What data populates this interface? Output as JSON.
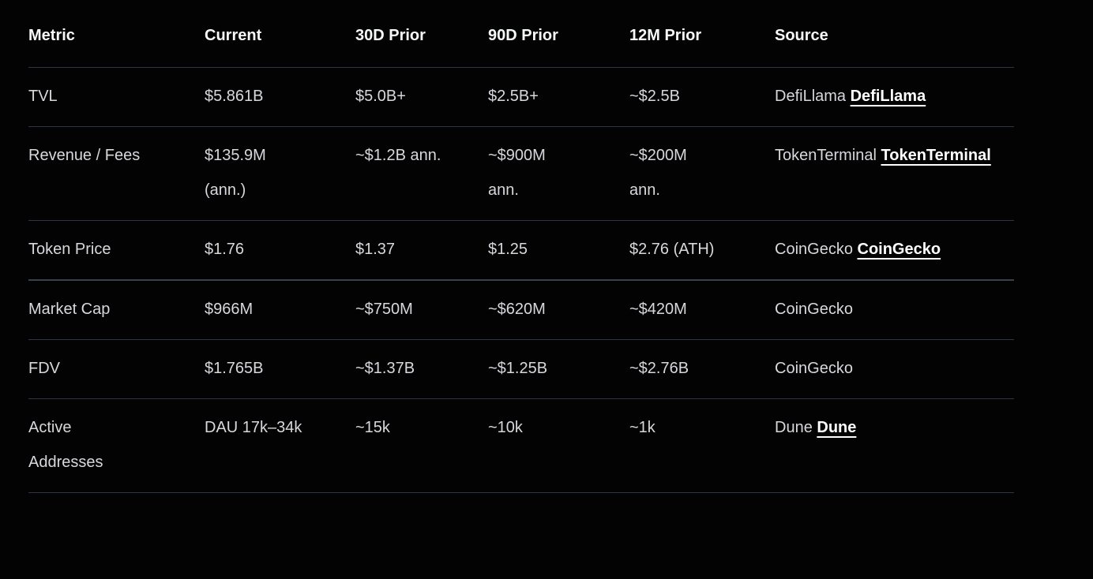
{
  "colors": {
    "background": "#030304",
    "text": "#d7d8dc",
    "heading": "#f7f8f8",
    "divider": "#2e3542",
    "link": "#ffffff"
  },
  "table": {
    "columns": [
      "Metric",
      "Current",
      "30D Prior",
      "90D Prior",
      "12M Prior",
      "Source"
    ],
    "rows": [
      {
        "metric": "TVL",
        "current": "$5.861B",
        "prior_30d": "$5.0B+",
        "prior_90d": "$2.5B+",
        "prior_12m": "~$2.5B",
        "source_text": "DefiLlama",
        "source_link": "DefiLlama"
      },
      {
        "metric": "Revenue / Fees",
        "current": "$135.9M (ann.)",
        "prior_30d": "~$1.2B ann.",
        "prior_90d": "~$900M ann.",
        "prior_12m": "~$200M ann.",
        "source_text": "TokenTerminal",
        "source_link": "TokenTerminal"
      },
      {
        "metric": "Token Price",
        "current": "$1.76",
        "prior_30d": "$1.37",
        "prior_90d": "$1.25",
        "prior_12m": "$2.76 (ATH)",
        "source_text": "CoinGecko",
        "source_link": "CoinGecko"
      },
      {
        "metric": "Market Cap",
        "current": "$966M",
        "prior_30d": "~$750M",
        "prior_90d": "~$620M",
        "prior_12m": "~$420M",
        "source_text": "CoinGecko",
        "source_link": null
      },
      {
        "metric": "FDV",
        "current": "$1.765B",
        "prior_30d": "~$1.37B",
        "prior_90d": "~$1.25B",
        "prior_12m": "~$2.76B",
        "source_text": "CoinGecko",
        "source_link": null
      },
      {
        "metric": "Active Addresses",
        "current": "DAU 17k–34k",
        "prior_30d": "~15k",
        "prior_90d": "~10k",
        "prior_12m": "~1k",
        "source_text": "Dune",
        "source_link": "Dune"
      }
    ]
  }
}
